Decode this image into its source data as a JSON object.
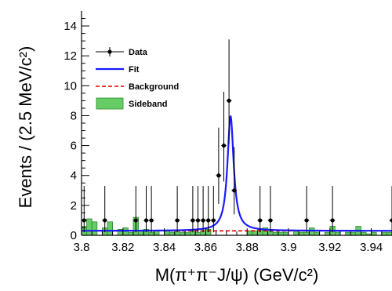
{
  "chart_data": {
    "type": "histogram-fit",
    "xlabel": "M(π⁺π⁻J/ψ) (GeV/c²)",
    "ylabel": "Events / (2.5 MeV/c²)",
    "xlim": [
      3.8,
      3.95
    ],
    "ylim": [
      0,
      15
    ],
    "x_ticks": [
      3.8,
      3.82,
      3.84,
      3.86,
      3.88,
      3.9,
      3.92,
      3.94
    ],
    "x_tick_labels": [
      "3.8",
      "3.82",
      "3.84",
      "3.86",
      "3.88",
      "3.9",
      "3.92",
      "3.94"
    ],
    "y_ticks": [
      0,
      2,
      4,
      6,
      8,
      10,
      12,
      14
    ],
    "y_tick_labels": [
      "0",
      "2",
      "4",
      "6",
      "8",
      "10",
      "12",
      "14"
    ],
    "legend": {
      "position": "top-left",
      "entries": [
        "Data",
        "Fit",
        "Background",
        "Sideband"
      ]
    },
    "data_points": {
      "x": [
        3.80125,
        3.81125,
        3.82625,
        3.83125,
        3.83375,
        3.84625,
        3.85375,
        3.85625,
        3.85875,
        3.86125,
        3.86375,
        3.86625,
        3.86875,
        3.87125,
        3.87375,
        3.88625,
        3.89125,
        3.90875,
        3.92125,
        3.95
      ],
      "y": [
        1,
        1,
        1,
        1,
        1,
        1,
        1,
        1,
        1,
        1,
        1,
        4,
        6,
        9,
        3,
        1,
        1,
        1,
        1,
        1
      ],
      "yerr_low": [
        0.8,
        0.8,
        0.8,
        0.8,
        0.8,
        0.8,
        0.8,
        0.8,
        0.8,
        0.8,
        0.8,
        1.9,
        2.4,
        2.9,
        1.6,
        0.8,
        0.8,
        0.8,
        0.8,
        0.8
      ],
      "yerr_high": [
        2.3,
        2.3,
        2.3,
        2.3,
        2.3,
        2.3,
        2.3,
        2.3,
        2.3,
        2.3,
        2.3,
        3.2,
        3.6,
        4.1,
        2.9,
        2.3,
        2.3,
        2.3,
        2.3,
        2.3
      ]
    },
    "fit": {
      "peak_mass": 3.872,
      "peak_height": 8.0,
      "width": 0.0018,
      "baseline": 0.3
    },
    "background": {
      "level": 0.3
    },
    "sideband": {
      "bin_width": 0.0025,
      "x": [
        3.80125,
        3.80375,
        3.80625,
        3.81125,
        3.81375,
        3.81875,
        3.82125,
        3.82375,
        3.82625,
        3.82875,
        3.83125,
        3.83375,
        3.83625,
        3.84125,
        3.84375,
        3.84625,
        3.84875,
        3.85125,
        3.85375,
        3.85625,
        3.85875,
        3.86125,
        3.88125,
        3.88375,
        3.88625,
        3.88875,
        3.89125,
        3.89375,
        3.89625,
        3.89875,
        3.90375,
        3.90625,
        3.90875,
        3.91125,
        3.91375,
        3.91875,
        3.92125,
        3.92375,
        3.92875,
        3.93125,
        3.93375,
        3.93625,
        3.93875,
        3.94125,
        3.94625,
        3.94875
      ],
      "values": [
        0.6,
        1.1,
        0.9,
        0.5,
        0.9,
        0.4,
        0.5,
        0.2,
        1.2,
        0.3,
        0.4,
        0.2,
        0.3,
        0.3,
        0.2,
        0.3,
        0.2,
        0.2,
        0.4,
        0.2,
        0.3,
        0.4,
        0.3,
        0.3,
        0.4,
        0.5,
        0.4,
        0.2,
        0.2,
        0.2,
        0.3,
        0.2,
        0.2,
        0.5,
        0.2,
        0.2,
        0.6,
        0.2,
        0.2,
        0.2,
        0.6,
        0.2,
        0.1,
        0.2,
        0.2,
        0.2
      ]
    }
  }
}
